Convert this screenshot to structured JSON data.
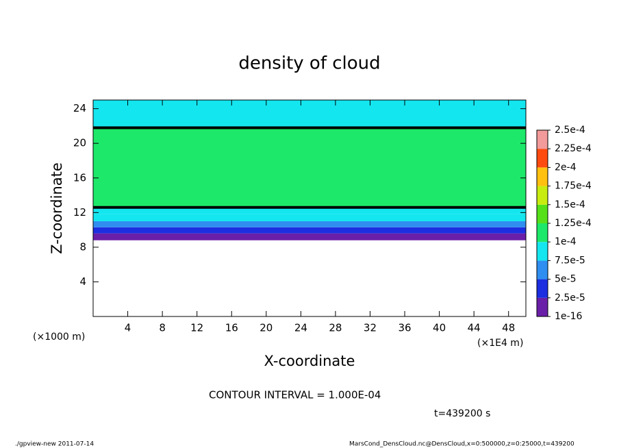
{
  "chart_data": {
    "type": "heatmap",
    "title": "density of cloud",
    "x_label": "X-coordinate",
    "y_label": "Z-coordinate",
    "x_unit": "(×1E4 m)",
    "y_unit": "(×1000 m)",
    "xlim": [
      0,
      50
    ],
    "ylim": [
      0,
      25
    ],
    "xticks": [
      4,
      8,
      12,
      16,
      20,
      24,
      28,
      32,
      36,
      40,
      44,
      48
    ],
    "yticks": [
      4,
      8,
      12,
      16,
      20,
      24
    ],
    "field": {
      "bins": [
        8.8,
        9.6,
        10.3,
        11,
        11.8,
        12.6,
        21.8,
        25
      ],
      "values": [
        1e-05,
        3.5e-05,
        6e-05,
        8e-05,
        9.5e-05,
        0.00011,
        9e-05
      ]
    },
    "contour_interval": {
      "value": 0.0001,
      "label": "CONTOUR INTERVAL = 1.000E-04"
    },
    "colorbar": {
      "levels": [
        {
          "value": 1e-16,
          "label": "1e-16"
        },
        {
          "value": 2.5e-05,
          "label": "2.5e-5"
        },
        {
          "value": 5e-05,
          "label": "5e-5"
        },
        {
          "value": 7.5e-05,
          "label": "7.5e-5"
        },
        {
          "value": 0.0001,
          "label": "1e-4"
        },
        {
          "value": 0.000125,
          "label": "1.25e-4"
        },
        {
          "value": 0.00015,
          "label": "1.5e-4"
        },
        {
          "value": 0.000175,
          "label": "1.75e-4"
        },
        {
          "value": 0.0002,
          "label": "2e-4"
        },
        {
          "value": 0.000225,
          "label": "2.25e-4"
        },
        {
          "value": 0.00025,
          "label": "2.5e-4"
        }
      ],
      "colors": [
        "#6a1fa8",
        "#1c2ee0",
        "#2f8ef0",
        "#14e6ef",
        "#1ee86a",
        "#55e01a",
        "#c8ec10",
        "#ffc010",
        "#ff4a10",
        "#f39a9a"
      ]
    },
    "time_label": "t=439200 s",
    "footer_left": "./gpview-new  2011-07-14",
    "footer_right": "MarsCond_DensCloud.nc@DensCloud,x=0:500000,z=0:25000,t=439200"
  }
}
